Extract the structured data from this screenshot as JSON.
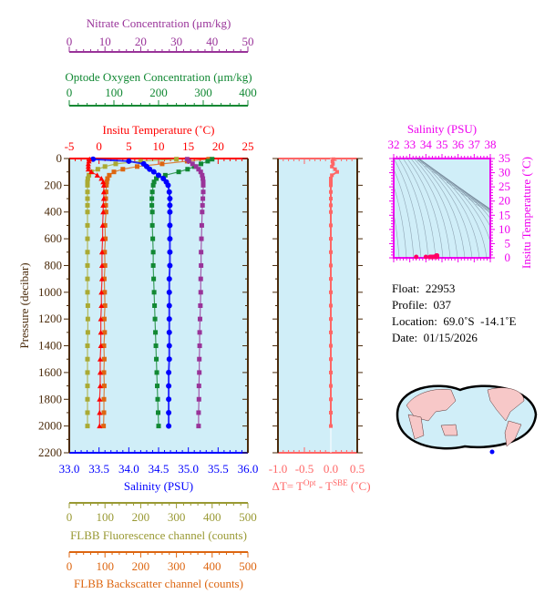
{
  "chart_data": {
    "type": "line",
    "ylabel": "Pressure (decibar)",
    "ylim": [
      0,
      2200
    ],
    "yticks": [
      0,
      200,
      400,
      600,
      800,
      1000,
      1200,
      1400,
      1600,
      1800,
      2000,
      2200
    ],
    "pressure": [
      5,
      20,
      40,
      60,
      80,
      100,
      125,
      150,
      175,
      200,
      250,
      300,
      350,
      400,
      500,
      600,
      700,
      800,
      900,
      1000,
      1100,
      1200,
      1300,
      1400,
      1500,
      1600,
      1700,
      1800,
      1900,
      2000
    ],
    "axes": {
      "nitrate": {
        "label": "Nitrate Concentration (μm/kg)",
        "range": [
          0,
          50
        ],
        "ticks": [
          "0",
          "10",
          "20",
          "30",
          "40",
          "50"
        ],
        "color": "#993399"
      },
      "oxygen": {
        "label": "Optode Oxygen Concentration (μm/kg)",
        "range": [
          0,
          400
        ],
        "ticks": [
          "0",
          "100",
          "200",
          "300",
          "400"
        ],
        "color": "#118833"
      },
      "temperature": {
        "label": "Insitu Temperature (˚C)",
        "range": [
          -5,
          25
        ],
        "ticks": [
          "-5",
          "0",
          "5",
          "10",
          "15",
          "20",
          "25"
        ],
        "color": "#ff0000"
      },
      "salinity": {
        "label": "Salinity (PSU)",
        "range": [
          33,
          36
        ],
        "ticks": [
          "33.0",
          "33.5",
          "34.0",
          "34.5",
          "35.0",
          "35.5",
          "36.0"
        ],
        "color": "#0000ff"
      },
      "fluorescence": {
        "label": "FLBB Fluorescence channel (counts)",
        "range": [
          0,
          500
        ],
        "ticks": [
          "0",
          "100",
          "200",
          "300",
          "400",
          "500"
        ],
        "color": "#999933"
      },
      "backscatter": {
        "label": "FLBB Backscatter channel (counts)",
        "range": [
          0,
          500
        ],
        "ticks": [
          "0",
          "100",
          "200",
          "300",
          "400",
          "500"
        ],
        "color": "#dd6611"
      },
      "delta_t": {
        "label": "ΔT= T",
        "sup1": "Opt",
        "mid": " - T",
        "sup2": "SBE",
        "unit": " (˚C)",
        "range": [
          -1,
          0.5
        ],
        "ticks": [
          "-1.0",
          "-0.5",
          "0.0",
          "0.5"
        ],
        "color": "#ff6666"
      }
    },
    "series": [
      {
        "key": "fluorescence",
        "color": "#aaaa33",
        "values": [
          300,
          200,
          130,
          100,
          80,
          62,
          55,
          52,
          51,
          51,
          51,
          51,
          51,
          51,
          51,
          51,
          51,
          51,
          51,
          51,
          52,
          52,
          52,
          51,
          51,
          51,
          51,
          51,
          51,
          51
        ]
      },
      {
        "key": "backscatter",
        "color": "#dd6611",
        "values": [
          390,
          330,
          260,
          190,
          150,
          125,
          112,
          107,
          105,
          104,
          103,
          102,
          102,
          103,
          100,
          101,
          99,
          100,
          98,
          99,
          100,
          98,
          99,
          97,
          98,
          97,
          98,
          97,
          97,
          96
        ]
      },
      {
        "key": "oxygen",
        "color": "#118833",
        "values": [
          320,
          310,
          295,
          280,
          265,
          245,
          215,
          195,
          190,
          188,
          186,
          185,
          185,
          186,
          186,
          187,
          188,
          188,
          189,
          190,
          191,
          192,
          193,
          194,
          195,
          196,
          197,
          198,
          199,
          200
        ]
      },
      {
        "key": "nitrate",
        "color": "#993399",
        "values": [
          33.0,
          33.5,
          34.5,
          35.5,
          36.2,
          36.8,
          37.2,
          37.4,
          37.5,
          37.5,
          37.5,
          37.4,
          37.3,
          37.2,
          37.1,
          37.0,
          36.9,
          36.9,
          36.8,
          36.8,
          36.7,
          36.6,
          36.5,
          36.5,
          36.4,
          36.4,
          36.3,
          36.3,
          36.2,
          36.2
        ]
      },
      {
        "key": "salinity",
        "color": "#0000ff",
        "values": [
          33.4,
          34.0,
          34.25,
          34.3,
          34.35,
          34.42,
          34.5,
          34.58,
          34.63,
          34.66,
          34.68,
          34.69,
          34.69,
          34.69,
          34.69,
          34.69,
          34.69,
          34.69,
          34.68,
          34.68,
          34.68,
          34.68,
          34.68,
          34.68,
          34.68,
          34.67,
          34.67,
          34.67,
          34.67,
          34.67
        ]
      },
      {
        "key": "temperature",
        "color": "#ff0000",
        "values": [
          -1.6,
          -1.7,
          -1.8,
          -1.8,
          -1.8,
          -1.3,
          -0.3,
          0.4,
          0.7,
          0.8,
          0.8,
          0.8,
          0.7,
          0.7,
          0.6,
          0.6,
          0.5,
          0.5,
          0.5,
          0.4,
          0.4,
          0.3,
          0.3,
          0.3,
          0.2,
          0.2,
          0.2,
          0.1,
          0.1,
          0.1
        ]
      }
    ],
    "delta_t": [
      0.05,
      0.03,
      0.04,
      0.02,
      0.08,
      0.12,
      0.02,
      0.0,
      0.0,
      0.0,
      0.0,
      0.0,
      0.0,
      0.0,
      0.0,
      0.0,
      0.0,
      0.0,
      0.0,
      0.0,
      0.0,
      0.0,
      0.0,
      0.0,
      0.0,
      0.0,
      0.0,
      0.0,
      0.0,
      0.0
    ],
    "ts_diagram": {
      "xlabel": "Salinity (PSU)",
      "ylabel": "Insitu Temperature (˚C)",
      "xrange": [
        32,
        38
      ],
      "yrange": [
        0,
        35
      ],
      "xticks": [
        "32",
        "33",
        "34",
        "35",
        "36",
        "37",
        "38"
      ],
      "yticks": [
        "0",
        "5",
        "10",
        "15",
        "20",
        "25",
        "30",
        "35"
      ],
      "color": "#ee00ee"
    },
    "background": "#d0eef8",
    "axis_color": "#4a2a0a"
  },
  "info": {
    "float": "Float:  22953",
    "profile": "Profile:  037",
    "location": "Location:  69.0˚S  -14.1˚E",
    "date": "Date:  01/15/2026"
  }
}
